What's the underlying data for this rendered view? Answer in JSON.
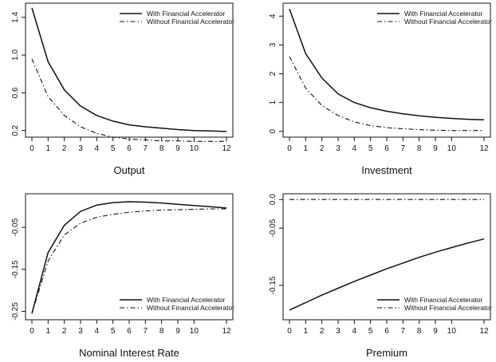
{
  "figure": {
    "panels": [
      "Output",
      "Investment",
      "Nominal Interest Rate",
      "Premium"
    ]
  },
  "chart_data": [
    {
      "type": "line",
      "title": "Output",
      "xlabel": "",
      "ylabel": "",
      "x": [
        0,
        1,
        2,
        3,
        4,
        5,
        6,
        7,
        8,
        9,
        10,
        11,
        12
      ],
      "x_ticks": [
        0,
        1,
        2,
        3,
        4,
        5,
        6,
        7,
        8,
        9,
        10,
        12
      ],
      "y_ticks": [
        0.2,
        0.6,
        1.0,
        1.4
      ],
      "y_tick_labels": [
        "0.2",
        "0.6",
        "1.0",
        "1.4"
      ],
      "ylim": [
        0.13,
        1.55
      ],
      "legend": "top-right",
      "series": [
        {
          "name": "With Financial Accelerator",
          "style": "solid",
          "values": [
            1.5,
            0.93,
            0.63,
            0.46,
            0.36,
            0.3,
            0.26,
            0.24,
            0.225,
            0.21,
            0.2,
            0.195,
            0.19
          ]
        },
        {
          "name": "Without Financial Accelerator",
          "style": "dashdot",
          "values": [
            0.96,
            0.56,
            0.36,
            0.24,
            0.17,
            0.13,
            0.11,
            0.1,
            0.09,
            0.09,
            0.085,
            0.085,
            0.085
          ]
        }
      ]
    },
    {
      "type": "line",
      "title": "Investment",
      "xlabel": "",
      "ylabel": "",
      "x": [
        0,
        1,
        2,
        3,
        4,
        5,
        6,
        7,
        8,
        9,
        10,
        11,
        12
      ],
      "x_ticks": [
        0,
        1,
        2,
        3,
        4,
        5,
        6,
        7,
        8,
        9,
        10,
        12
      ],
      "y_ticks": [
        0,
        1,
        2,
        3,
        4
      ],
      "y_tick_labels": [
        "0",
        "1",
        "2",
        "3",
        "4"
      ],
      "ylim": [
        -0.2,
        4.45
      ],
      "legend": "top-right",
      "series": [
        {
          "name": "With Financial Accelerator",
          "style": "solid",
          "values": [
            4.25,
            2.7,
            1.85,
            1.3,
            1.0,
            0.82,
            0.7,
            0.61,
            0.54,
            0.49,
            0.45,
            0.42,
            0.4
          ]
        },
        {
          "name": "Without Financial Accelerator",
          "style": "dashdot",
          "values": [
            2.6,
            1.5,
            0.9,
            0.55,
            0.33,
            0.2,
            0.13,
            0.09,
            0.06,
            0.04,
            0.03,
            0.03,
            0.03
          ]
        }
      ]
    },
    {
      "type": "line",
      "title": "Nominal Interest Rate",
      "xlabel": "",
      "ylabel": "",
      "x": [
        0,
        1,
        2,
        3,
        4,
        5,
        6,
        7,
        8,
        9,
        10,
        11,
        12
      ],
      "x_ticks": [
        0,
        1,
        2,
        3,
        4,
        5,
        6,
        7,
        8,
        9,
        10,
        12
      ],
      "y_ticks": [
        -0.25,
        -0.15,
        -0.05
      ],
      "y_tick_labels": [
        "-0.25",
        "-0.15",
        "-0.05"
      ],
      "ylim": [
        -0.27,
        0.03
      ],
      "legend": "bottom-right",
      "series": [
        {
          "name": "With Financial Accelerator",
          "style": "solid",
          "values": [
            -0.255,
            -0.11,
            -0.045,
            -0.012,
            0.003,
            0.009,
            0.011,
            0.01,
            0.008,
            0.005,
            0.002,
            -0.001,
            -0.004
          ]
        },
        {
          "name": "Without Financial Accelerator",
          "style": "dashdot",
          "values": [
            -0.255,
            -0.13,
            -0.068,
            -0.04,
            -0.026,
            -0.019,
            -0.014,
            -0.011,
            -0.009,
            -0.008,
            -0.007,
            -0.006,
            -0.006
          ]
        }
      ]
    },
    {
      "type": "line",
      "title": "Premium",
      "xlabel": "",
      "ylabel": "",
      "x": [
        0,
        1,
        2,
        3,
        4,
        5,
        6,
        7,
        8,
        9,
        10,
        11,
        12
      ],
      "x_ticks": [
        0,
        1,
        2,
        3,
        4,
        5,
        6,
        7,
        8,
        9,
        10,
        12
      ],
      "y_ticks": [
        0.0,
        -0.05,
        -0.15
      ],
      "y_tick_labels": [
        "0.0",
        "-0.05",
        "-0.15"
      ],
      "ylim": [
        -0.21,
        0.01
      ],
      "legend": "bottom-right",
      "series": [
        {
          "name": "With Financial Accelerator",
          "style": "solid",
          "values": [
            -0.193,
            -0.18,
            -0.167,
            -0.155,
            -0.143,
            -0.132,
            -0.121,
            -0.111,
            -0.101,
            -0.092,
            -0.084,
            -0.076,
            -0.069
          ]
        },
        {
          "name": "Without Financial Accelerator",
          "style": "dashdot",
          "values": [
            0,
            0,
            0,
            0,
            0,
            0,
            0,
            0,
            0,
            0,
            0,
            0,
            0
          ]
        }
      ]
    }
  ]
}
